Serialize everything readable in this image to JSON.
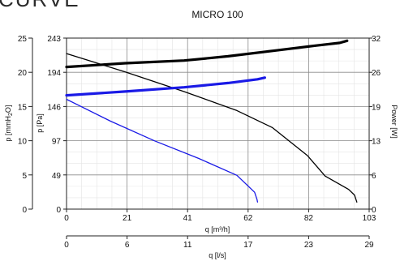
{
  "header": {
    "brand": "CURVE"
  },
  "chart_data": {
    "type": "line",
    "title": "MICRO 100",
    "x_axis_top": {
      "label": "q [m³/h]",
      "range": [
        0,
        103
      ],
      "ticks": [
        0,
        21,
        41,
        62,
        82,
        103
      ]
    },
    "x_axis_bottom": {
      "label": "q [l/s]",
      "range": [
        0,
        29
      ],
      "ticks": [
        0,
        6,
        11,
        17,
        23,
        29
      ]
    },
    "y_axis_pa": {
      "label": "p [Pa]",
      "range": [
        0,
        243
      ],
      "ticks": [
        0,
        49,
        97,
        146,
        194,
        243
      ]
    },
    "y_axis_mmh2o": {
      "label_main": "p [mmH",
      "label_sub": "2",
      "label_end": "O]",
      "range": [
        0,
        25
      ],
      "ticks": [
        0,
        5,
        10,
        15,
        20,
        25
      ]
    },
    "y_axis_power": {
      "label": "Power [W]",
      "range": [
        0,
        32
      ],
      "ticks": [
        0,
        6,
        13,
        19,
        26,
        32
      ]
    },
    "grid": true,
    "series": [
      {
        "color": "#000000",
        "width": 1.3,
        "axis": "pa",
        "points": [
          [
            0,
            221
          ],
          [
            20,
            195
          ],
          [
            40,
            167
          ],
          [
            58,
            140
          ],
          [
            70,
            116
          ],
          [
            82,
            76
          ],
          [
            88,
            47
          ],
          [
            96,
            28
          ],
          [
            98,
            20
          ],
          [
            98.8,
            10
          ]
        ]
      },
      {
        "color": "#1a1ae6",
        "width": 1.3,
        "axis": "pa",
        "points": [
          [
            0,
            156
          ],
          [
            15,
            125
          ],
          [
            30,
            97
          ],
          [
            45,
            72
          ],
          [
            58,
            48
          ],
          [
            62,
            32
          ],
          [
            64,
            24
          ],
          [
            64.8,
            14
          ],
          [
            65,
            10
          ]
        ]
      },
      {
        "color": "#000000",
        "width": 3.2,
        "axis": "power",
        "points": [
          [
            0,
            26.6
          ],
          [
            20,
            27.3
          ],
          [
            40,
            27.8
          ],
          [
            55,
            28.6
          ],
          [
            70,
            29.6
          ],
          [
            85,
            30.6
          ],
          [
            93,
            31.1
          ],
          [
            95.5,
            31.5
          ]
        ]
      },
      {
        "color": "#1a1ae6",
        "width": 3.2,
        "axis": "power",
        "points": [
          [
            0,
            21.3
          ],
          [
            20,
            22.0
          ],
          [
            40,
            22.8
          ],
          [
            55,
            23.6
          ],
          [
            65,
            24.3
          ],
          [
            67.5,
            24.6
          ]
        ]
      }
    ]
  }
}
